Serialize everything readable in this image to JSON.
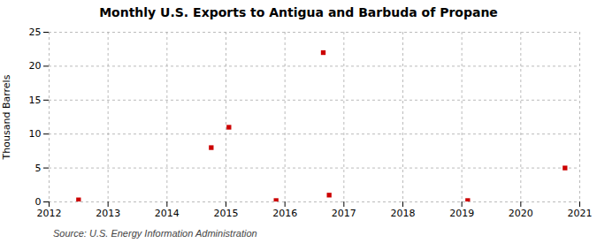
{
  "chart_data": {
    "type": "scatter",
    "title": "Monthly U.S. Exports to Antigua and Barbuda of Propane",
    "ylabel": "Thousand Barrels",
    "source": "Source: U.S. Energy Information Administration",
    "x": [
      2012.5,
      2014.75,
      2015.05,
      2015.85,
      2016.65,
      2016.75,
      2019.1,
      2020.75
    ],
    "values": [
      0.3,
      8,
      11,
      0.2,
      22,
      1,
      0.2,
      5
    ],
    "color": "#cc0000",
    "marker": "square",
    "xlim": [
      2012,
      2021
    ],
    "ylim": [
      0,
      25
    ],
    "xticks": [
      2012,
      2013,
      2014,
      2015,
      2016,
      2017,
      2018,
      2019,
      2020,
      2021
    ],
    "yticks": [
      0,
      5,
      10,
      15,
      20,
      25
    ],
    "grid": true
  }
}
